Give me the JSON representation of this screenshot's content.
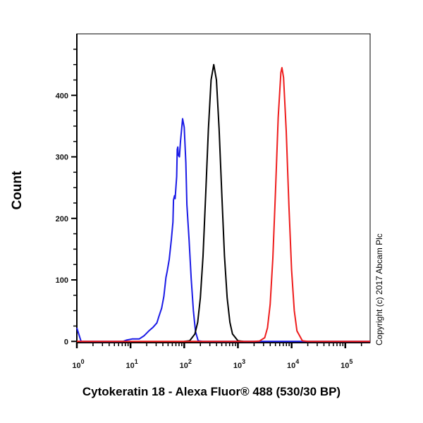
{
  "chart_data": {
    "type": "line",
    "title": "",
    "xlabel": "Cytokeratin 18 - Alexa Fluor® 488 (530/30 BP)",
    "ylabel": "Count",
    "xscale": "log",
    "xlim": [
      1,
      290000
    ],
    "ylim": [
      -2,
      500
    ],
    "grid": false,
    "x_ticks": [
      {
        "value": 1,
        "base": "10",
        "exp": "0"
      },
      {
        "value": 10,
        "base": "10",
        "exp": "1"
      },
      {
        "value": 100,
        "base": "10",
        "exp": "2"
      },
      {
        "value": 1000,
        "base": "10",
        "exp": "3"
      },
      {
        "value": 10000,
        "base": "10",
        "exp": "4"
      },
      {
        "value": 100000,
        "base": "10",
        "exp": "5"
      }
    ],
    "y_ticks": [
      0,
      100,
      200,
      300,
      400
    ],
    "series": [
      {
        "color": "#1a1ae6",
        "x": [
          1,
          1.2,
          3.9,
          7.2,
          8.3,
          10.7,
          14.5,
          17.8,
          21.9,
          26.3,
          30.9,
          33.9,
          38,
          41.7,
          45.7,
          47.9,
          52.5,
          57.5,
          61.7,
          63.1,
          66.1,
          67.6,
          72.4,
          74.1,
          75.9,
          77.6,
          81.3,
          85.1,
          93.3,
          100,
          107,
          112,
          123,
          135,
          148,
          162,
          182,
          219,
          290000
        ],
        "y": [
          22,
          0,
          0,
          0,
          2,
          4,
          4,
          9,
          17,
          23,
          30,
          41,
          54,
          73,
          104,
          113,
          133,
          165,
          194,
          230,
          237,
          232,
          268,
          312,
          316,
          303,
          300,
          325,
          362,
          348,
          291,
          222,
          165,
          102,
          50,
          16,
          1,
          0,
          0
        ]
      },
      {
        "color": "#000000",
        "x": [
          100,
          126,
          158,
          178,
          200,
          224,
          251,
          282,
          316,
          355,
          398,
          447,
          501,
          562,
          631,
          708,
          794,
          1000,
          1259
        ],
        "y": [
          0,
          1,
          12,
          31,
          71,
          139,
          240,
          345,
          425,
          450,
          425,
          345,
          240,
          139,
          71,
          31,
          12,
          1,
          0
        ]
      },
      {
        "color": "#ee1c1c",
        "x": [
          1,
          1995,
          2512,
          3162,
          3548,
          3981,
          4467,
          5012,
          5623,
          6310,
          6607,
          7079,
          7943,
          8913,
          10000,
          11220,
          12589,
          15849,
          19953,
          290000
        ],
        "y": [
          0,
          0,
          0.5,
          6,
          22,
          60,
          135,
          245,
          364,
          437,
          445,
          429,
          342,
          221,
          116,
          50,
          17,
          1,
          0,
          0
        ]
      }
    ]
  },
  "copyright": "Copyright (c) 2017 Abcam Plc"
}
